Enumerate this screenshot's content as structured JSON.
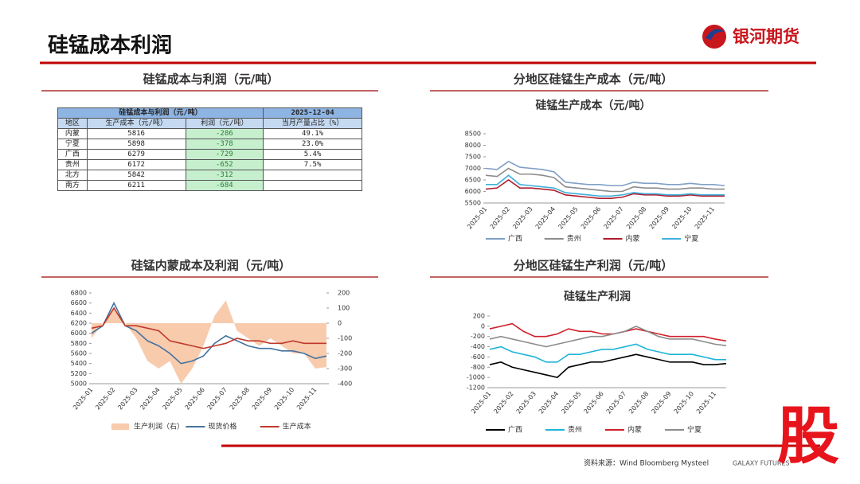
{
  "header": {
    "title": "硅锰成本利润",
    "logo": "银河期货"
  },
  "panels": [
    "硅锰成本与利润（元/吨）",
    "分地区硅锰生产成本（元/吨）",
    "硅锰内蒙成本及利润（元/吨）",
    "分地区硅锰生产利润（元/吨）"
  ],
  "table": {
    "header": [
      "硅锰成本与利润（元/吨）",
      "2025-12-04"
    ],
    "columns": [
      "地区",
      "生产成本（元/吨）",
      "利润（元/吨）",
      "当月产量占比（%）"
    ],
    "rows": [
      [
        "内蒙",
        "5816",
        "-286",
        "49.1%"
      ],
      [
        "宁夏",
        "5898",
        "-378",
        "23.0%"
      ],
      [
        "广西",
        "6279",
        "-729",
        "5.4%"
      ],
      [
        "贵州",
        "6172",
        "-652",
        "7.5%"
      ],
      [
        "北方",
        "5842",
        "-312",
        ""
      ],
      [
        "南方",
        "6211",
        "-684",
        ""
      ]
    ]
  },
  "chart_data": [
    {
      "type": "line",
      "title": "硅锰生产成本（元/吨）",
      "legend": "bottom",
      "categories": [
        "2025-01",
        null,
        "2025-02",
        null,
        "2025-03",
        null,
        "2025-04",
        null,
        "2025-05",
        null,
        "2025-06",
        null,
        "2025-07",
        null,
        "2025-08",
        null,
        "2025-09",
        null,
        "2025-10",
        null,
        "2025-11",
        null
      ],
      "ylim": [
        5500,
        8500
      ],
      "yticks": [
        5500,
        6000,
        6500,
        7000,
        7500,
        8000,
        8500
      ],
      "series": [
        {
          "name": "广西",
          "color": "#7f9fc6",
          "values": [
            7000,
            6950,
            7300,
            7050,
            7000,
            6950,
            6850,
            6400,
            6350,
            6300,
            6300,
            6250,
            6250,
            6400,
            6350,
            6350,
            6300,
            6300,
            6350,
            6300,
            6300,
            6250
          ]
        },
        {
          "name": "贵州",
          "color": "#8c8c8c",
          "values": [
            6700,
            6650,
            7000,
            6750,
            6750,
            6700,
            6600,
            6200,
            6150,
            6100,
            6050,
            6000,
            6000,
            6200,
            6150,
            6150,
            6100,
            6100,
            6150,
            6150,
            6100,
            6100
          ]
        },
        {
          "name": "内蒙",
          "color": "#b01c2e",
          "values": [
            6100,
            6150,
            6500,
            6150,
            6150,
            6100,
            6050,
            5850,
            5800,
            5750,
            5700,
            5700,
            5750,
            5900,
            5850,
            5850,
            5800,
            5800,
            5850,
            5800,
            5800,
            5800
          ]
        },
        {
          "name": "宁夏",
          "color": "#3fb0dc",
          "values": [
            6300,
            6300,
            6700,
            6300,
            6250,
            6200,
            6150,
            5950,
            5900,
            5850,
            5800,
            5800,
            5850,
            5950,
            5900,
            5900,
            5850,
            5850,
            5900,
            5850,
            5850,
            5850
          ]
        }
      ]
    },
    {
      "type": "line",
      "legend": "bottom",
      "categories": [
        "2025-01",
        null,
        "2025-02",
        null,
        "2025-03",
        null,
        "2025-04",
        null,
        "2025-05",
        null,
        "2025-06",
        null,
        "2025-07",
        null,
        "2025-08",
        null,
        "2025-09",
        null,
        "2025-10",
        null,
        "2025-11",
        null
      ],
      "ylim": [
        5000,
        6800
      ],
      "yticks": [
        5000,
        5200,
        5400,
        5600,
        5800,
        6000,
        6200,
        6400,
        6600,
        6800
      ],
      "y2lim": [
        -400,
        200
      ],
      "y2ticks": [
        -400,
        -300,
        -200,
        -100,
        0,
        100,
        200
      ],
      "series": [
        {
          "name": "生产利润（右）",
          "type": "area",
          "axis": "y2",
          "color": "#f8cbad",
          "values": [
            -100,
            0,
            100,
            0,
            -100,
            -250,
            -300,
            -250,
            -400,
            -300,
            -150,
            50,
            150,
            -50,
            -100,
            -150,
            -100,
            -150,
            -200,
            -200,
            -300,
            -290
          ]
        },
        {
          "name": "现货价格",
          "color": "#44729e",
          "values": [
            6000,
            6150,
            6600,
            6150,
            6050,
            5850,
            5750,
            5600,
            5400,
            5450,
            5550,
            5800,
            5950,
            5850,
            5750,
            5700,
            5700,
            5650,
            5650,
            5600,
            5500,
            5550
          ]
        },
        {
          "name": "生产成本",
          "color": "#c0392b",
          "values": [
            6100,
            6150,
            6500,
            6150,
            6150,
            6100,
            6050,
            5850,
            5800,
            5750,
            5700,
            5750,
            5800,
            5900,
            5850,
            5850,
            5800,
            5800,
            5850,
            5800,
            5800,
            5800
          ]
        }
      ]
    },
    {
      "type": "line",
      "title": "硅锰生产利润",
      "legend": "bottom",
      "categories": [
        "2025-01",
        null,
        "2025-02",
        null,
        "2025-03",
        null,
        "2025-04",
        null,
        "2025-05",
        null,
        "2025-06",
        null,
        "2025-07",
        null,
        "2025-08",
        null,
        "2025-09",
        null,
        "2025-10",
        null,
        "2025-11",
        null
      ],
      "ylim": [
        -1200,
        200
      ],
      "yticks": [
        -1200,
        -1000,
        -800,
        -600,
        -400,
        -200,
        0,
        200
      ],
      "series": [
        {
          "name": "广西",
          "color": "#000000",
          "values": [
            -750,
            -700,
            -800,
            -850,
            -900,
            -950,
            -1000,
            -800,
            -750,
            -700,
            -700,
            -650,
            -600,
            -550,
            -600,
            -650,
            -700,
            -700,
            -700,
            -750,
            -750,
            -729
          ]
        },
        {
          "name": "贵州",
          "color": "#1fb5d8",
          "values": [
            -450,
            -400,
            -500,
            -550,
            -600,
            -700,
            -700,
            -550,
            -550,
            -500,
            -450,
            -450,
            -400,
            -350,
            -450,
            -500,
            -550,
            -550,
            -550,
            -600,
            -650,
            -652
          ]
        },
        {
          "name": "内蒙",
          "color": "#d0202a",
          "values": [
            -50,
            0,
            50,
            -100,
            -200,
            -200,
            -150,
            -50,
            -100,
            -100,
            -150,
            -150,
            -100,
            -50,
            -100,
            -150,
            -200,
            -200,
            -200,
            -200,
            -250,
            -286
          ]
        },
        {
          "name": "宁夏",
          "color": "#8c8c8c",
          "values": [
            -250,
            -200,
            -250,
            -300,
            -350,
            -400,
            -350,
            -300,
            -250,
            -200,
            -200,
            -150,
            -100,
            0,
            -100,
            -200,
            -250,
            -250,
            -250,
            -300,
            -350,
            -378
          ]
        }
      ]
    }
  ],
  "footer": {
    "source": "资料来源：Wind Bloomberg Mysteel",
    "brand": "GALAXY FUTURES",
    "watermark": "股"
  }
}
